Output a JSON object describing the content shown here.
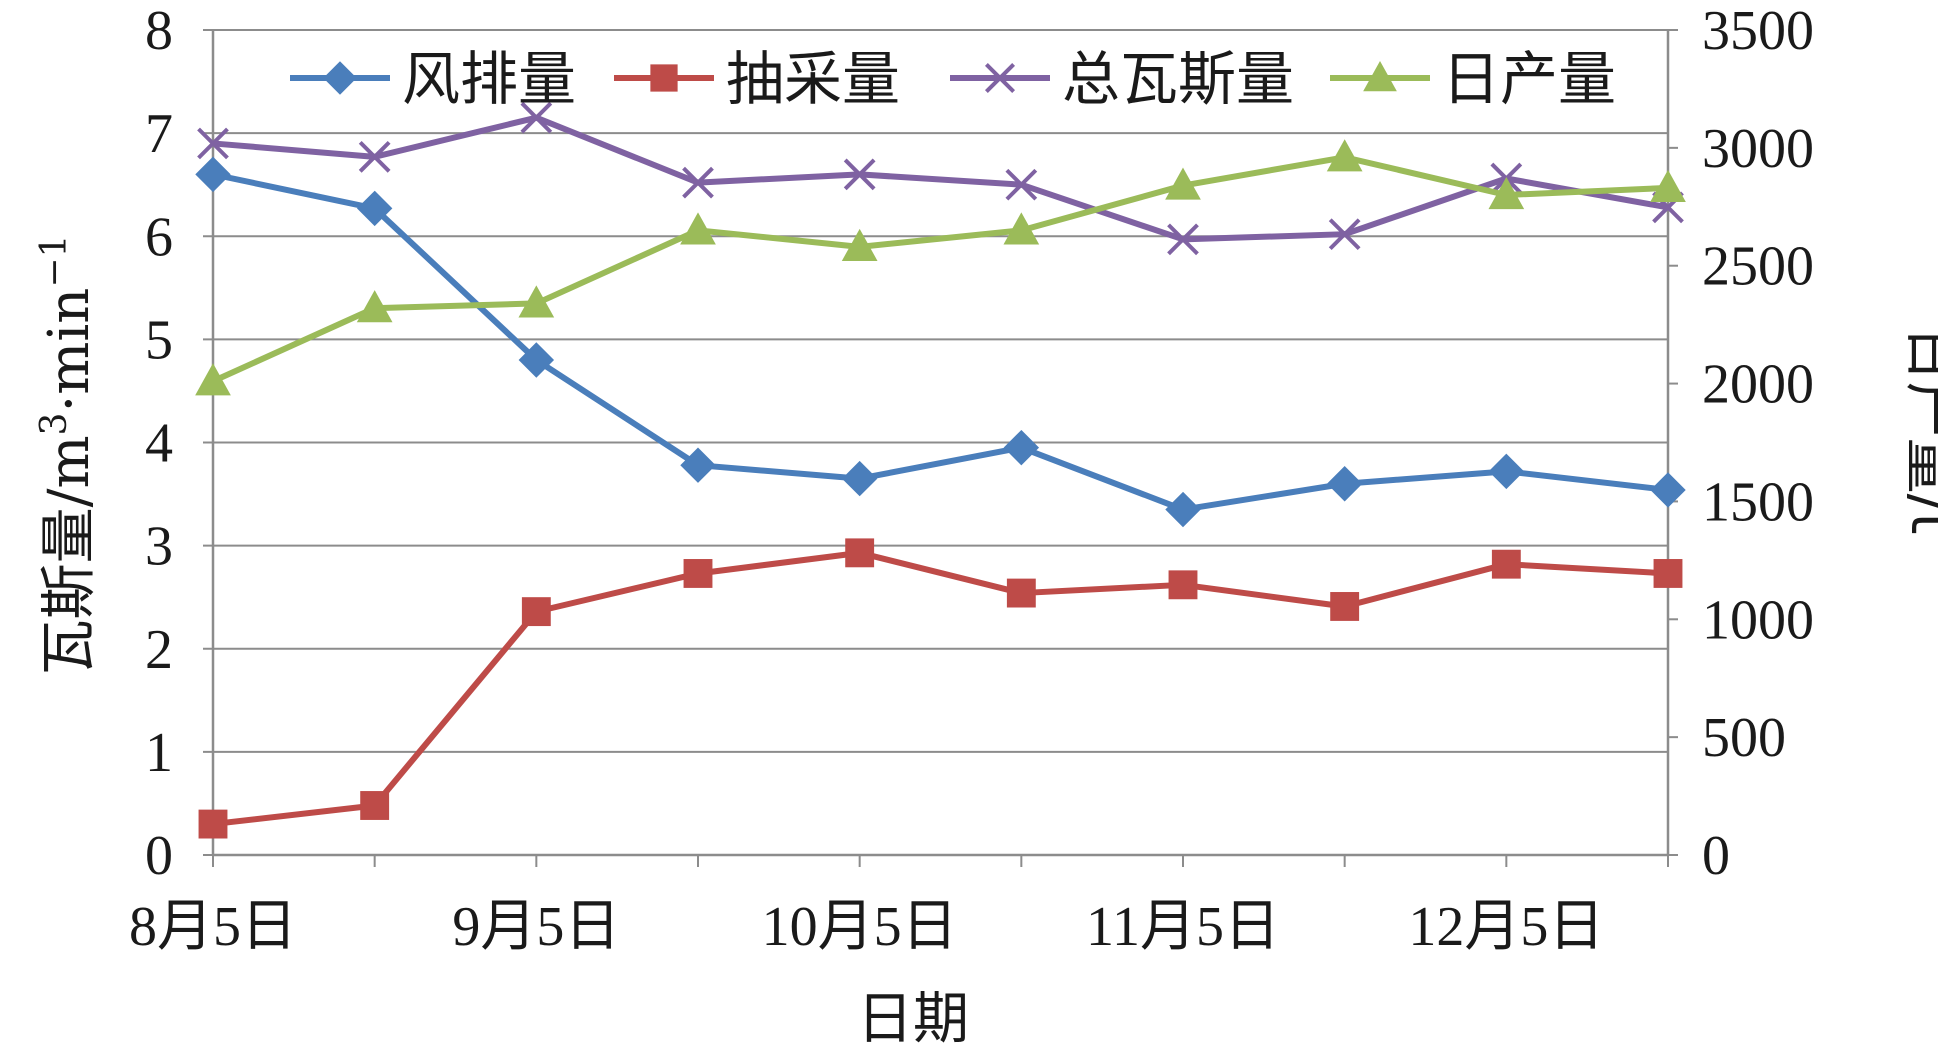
{
  "chart_data": {
    "type": "line",
    "x": [
      "8月5日",
      "",
      "9月5日",
      "",
      "10月5日",
      "",
      "11月5日",
      "",
      "12月5日",
      ""
    ],
    "xlabel": "日期",
    "ylabel_left": {
      "prefix": "瓦斯量/m",
      "sup1": "3",
      "mid": "·min",
      "sup2": "−1"
    },
    "ylabel_right": "日产量/t",
    "ylim_left": [
      0,
      8
    ],
    "ylim_right": [
      0,
      3500
    ],
    "left_ticks": [
      "0",
      "1",
      "2",
      "3",
      "4",
      "5",
      "6",
      "7",
      "8"
    ],
    "right_ticks": [
      "0",
      "500",
      "1000",
      "1500",
      "2000",
      "2500",
      "3000",
      "3500"
    ],
    "grid": "horizontal",
    "legend_position": "top",
    "series": [
      {
        "name": "风排量",
        "axis": "left",
        "marker": "diamond",
        "color": "#4a7ebb",
        "values": [
          6.6,
          6.27,
          4.8,
          3.78,
          3.65,
          3.95,
          3.35,
          3.6,
          3.72,
          3.54
        ]
      },
      {
        "name": "抽采量",
        "axis": "left",
        "marker": "square",
        "color": "#be4b48",
        "values": [
          0.3,
          0.48,
          2.36,
          2.73,
          2.93,
          2.54,
          2.62,
          2.41,
          2.82,
          2.73
        ]
      },
      {
        "name": "总瓦斯量",
        "axis": "left",
        "marker": "x",
        "color": "#7f62a2",
        "values": [
          6.9,
          6.77,
          7.15,
          6.52,
          6.6,
          6.5,
          5.97,
          6.02,
          6.56,
          6.28
        ]
      },
      {
        "name": "日产量",
        "axis": "right",
        "marker": "triangle",
        "color": "#9bbb59",
        "values": [
          2010,
          2320,
          2340,
          2650,
          2580,
          2650,
          2840,
          2960,
          2800,
          2830
        ]
      }
    ]
  }
}
